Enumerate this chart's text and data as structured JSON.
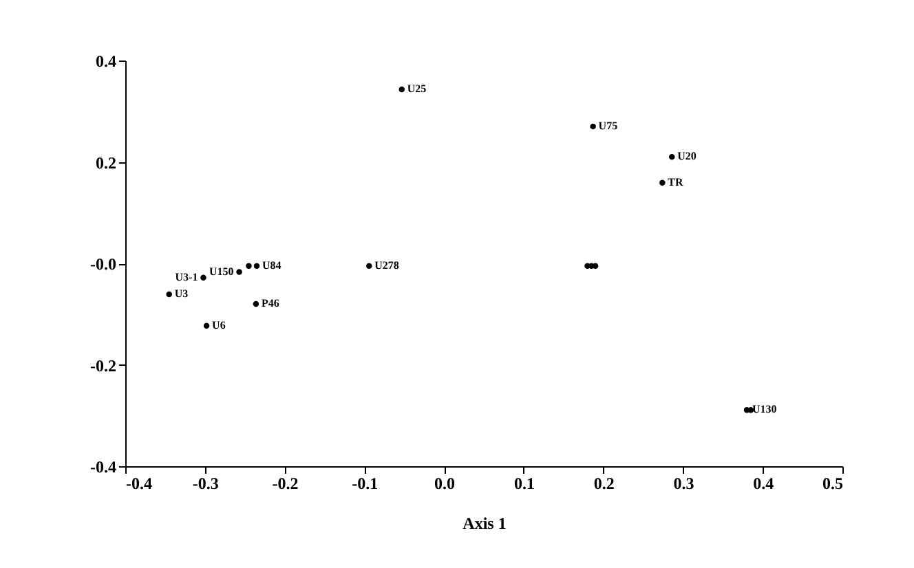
{
  "chart_data": {
    "type": "scatter",
    "xlabel": "Axis 1",
    "marker": "circle",
    "grid": false,
    "xlim": [
      -0.4,
      0.5
    ],
    "ylim": [
      -0.4,
      0.4
    ],
    "xticks": [
      -0.4,
      -0.3,
      -0.2,
      -0.1,
      {
        "value": 0,
        "label": "0.0"
      },
      0.1,
      0.2,
      0.3,
      0.4,
      0.5
    ],
    "yticks": [
      -0.4,
      -0.2,
      {
        "value": 0,
        "label": "-0.0"
      },
      0.2,
      0.4
    ],
    "series": [
      {
        "color": "#000000",
        "x": [
          -0.053,
          0.187,
          0.286,
          0.274,
          0.18,
          0.185,
          0.19,
          -0.094,
          -0.245,
          -0.235,
          -0.257,
          -0.302,
          -0.345,
          -0.236,
          -0.298,
          0.38,
          0.385
        ],
        "values": [
          0.343,
          0.27,
          0.21,
          0.159,
          -0.005,
          -0.005,
          -0.005,
          -0.005,
          -0.005,
          -0.005,
          -0.017,
          -0.028,
          -0.061,
          -0.08,
          -0.123,
          -0.289,
          -0.289
        ],
        "value_labels": [
          "U25",
          "U75",
          "U20",
          "TR",
          null,
          null,
          null,
          "U278",
          null,
          "U84",
          "U150",
          "U3-1",
          "U3",
          "P46",
          "U6",
          "U130",
          null
        ]
      }
    ]
  }
}
